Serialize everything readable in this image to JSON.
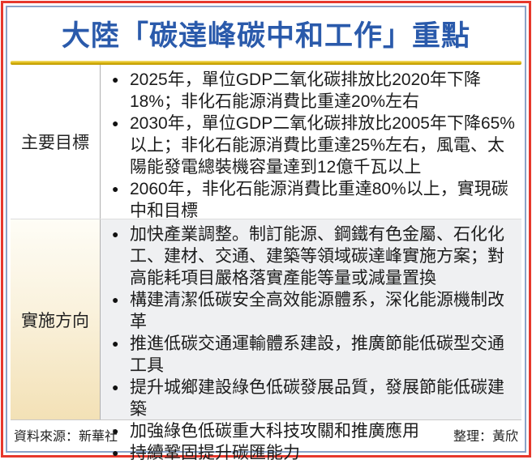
{
  "title": "大陸「碳達峰碳中和工作」重點",
  "icons": {
    "bullet": "●"
  },
  "colors": {
    "border_red": "#e6382c",
    "border_blue": "#8aa3c8",
    "title_blue": "#2a5aab",
    "gold_rule": "#c9a400",
    "actions_label_bg": "#f3e1b6",
    "actions_content_bg": "#eff0f2"
  },
  "table": {
    "rows": [
      {
        "label": "主要目標",
        "bullets": [
          "2025年，單位GDP二氧化碳排放比2020年下降18%；非化石能源消費比重達20%左右",
          "2030年，單位GDP二氧化碳排放比2005年下降65%以上；非化石能源消費比重達25%左右，風電、太陽能發電總裝機容量達到12億千瓦以上",
          "2060年，非化石能源消費比重達80%以上，實現碳中和目標"
        ]
      },
      {
        "label": "實施方向",
        "bullets": [
          "加快產業調整。制訂能源、鋼鐵有色金屬、石化化工、建材、交通、建築等領域碳達峰實施方案；對高能耗項目嚴格落實產能等量或減量置換",
          "構建清潔低碳安全高效能源體系，深化能源機制改革",
          "推進低碳交通運輸體系建設，推廣節能低碳型交通工具",
          "提升城鄉建設綠色低碳發展品質，發展節能低碳建築",
          "加強綠色低碳重大科技攻關和推廣應用",
          "持續鞏固提升碳匯能力"
        ]
      }
    ]
  },
  "footer": {
    "source": "資料來源：新華社",
    "editor": "整理：黃欣"
  }
}
